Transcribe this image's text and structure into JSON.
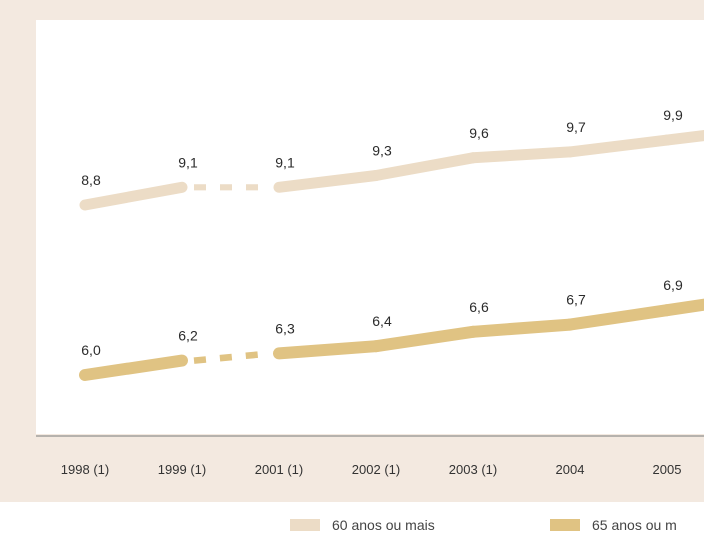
{
  "chart_data": {
    "type": "line",
    "categories": [
      "1998 (1)",
      "1999 (1)",
      "2001 (1)",
      "2002 (1)",
      "2003 (1)",
      "2004",
      "2005"
    ],
    "series": [
      {
        "name": "60 anos ou mais",
        "color": "#ecdcc6",
        "values": [
          8.8,
          9.1,
          9.1,
          9.3,
          9.6,
          9.7,
          9.9
        ],
        "labels": [
          "8,8",
          "9,1",
          "9,1",
          "9,3",
          "9,6",
          "9,7",
          "9,9"
        ]
      },
      {
        "name": "65 anos ou m",
        "color": "#e0c383",
        "values": [
          6.0,
          6.2,
          6.3,
          6.4,
          6.6,
          6.7,
          6.9
        ],
        "labels": [
          "6,0",
          "6,2",
          "6,3",
          "6,4",
          "6,6",
          "6,7",
          "6,9"
        ]
      }
    ],
    "gap_after_index": 1,
    "legend": "bottom",
    "grid": false
  }
}
